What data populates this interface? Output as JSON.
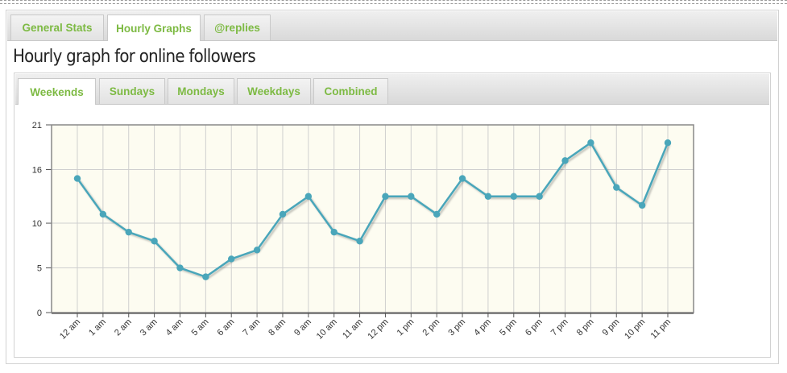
{
  "main_tabs": [
    {
      "label": "General Stats",
      "active": false
    },
    {
      "label": "Hourly Graphs",
      "active": true
    },
    {
      "label": "@replies",
      "active": false
    }
  ],
  "page_title": "Hourly graph for online followers",
  "sub_tabs": [
    {
      "label": "Weekends",
      "active": true
    },
    {
      "label": "Sundays",
      "active": false
    },
    {
      "label": "Mondays",
      "active": false
    },
    {
      "label": "Weekdays",
      "active": false
    },
    {
      "label": "Combined",
      "active": false
    }
  ],
  "colors": {
    "accent_green": "#7dba43",
    "series_line": "#4aa6ba",
    "plot_background": "#fdfcf1"
  },
  "chart_data": {
    "type": "line",
    "title": "",
    "xlabel": "",
    "ylabel": "",
    "categories": [
      "12 am",
      "1 am",
      "2 am",
      "3 am",
      "4 am",
      "5 am",
      "6 am",
      "7 am",
      "8 am",
      "9 am",
      "10 am",
      "11 am",
      "12 pm",
      "1 pm",
      "2 pm",
      "3 pm",
      "4 pm",
      "5 pm",
      "6 pm",
      "7 pm",
      "8 pm",
      "9 pm",
      "10 pm",
      "11 pm"
    ],
    "yticks": [
      "0",
      "5",
      "10",
      "16",
      "21"
    ],
    "ylim": [
      0,
      21
    ],
    "grid": true,
    "series": [
      {
        "values": [
          15,
          11,
          9,
          8,
          5,
          4,
          6,
          7,
          11,
          13,
          9,
          8,
          13,
          13,
          11,
          15,
          13,
          13,
          13,
          17,
          19,
          14,
          12,
          19
        ]
      }
    ]
  }
}
